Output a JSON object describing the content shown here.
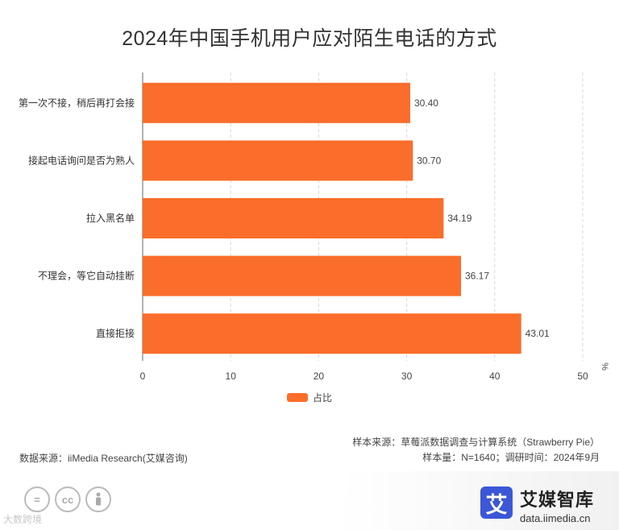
{
  "chart_data": {
    "type": "bar",
    "orientation": "horizontal",
    "title": "2024年中国手机用户应对陌生电话的方式",
    "categories": [
      "第一次不接，稍后再打会接",
      "接起电话询问是否为熟人",
      "拉入黑名单",
      "不理会，等它自动挂断",
      "直接拒接"
    ],
    "series": [
      {
        "name": "占比",
        "values": [
          30.4,
          30.7,
          34.19,
          36.17,
          43.01
        ],
        "labels": [
          "30.40",
          "30.70",
          "34.19",
          "36.17",
          "43.01"
        ]
      }
    ],
    "unit": "%",
    "xlim": [
      0,
      50
    ],
    "xticks": [
      0,
      10,
      20,
      30,
      40,
      50
    ],
    "grid": "vertical dashed",
    "legend": "bottom-center"
  },
  "colors": {
    "bar": "#fa6d2a",
    "brand": "#3b57d6"
  },
  "source": {
    "data_source": "数据来源：iiMedia Research(艾媒咨询)",
    "sample_source": "样本来源：草莓派数据调查与计算系统（Strawberry Pie）",
    "sample_info": "样本量：N=1640；调研时间：2024年9月"
  },
  "brand": {
    "icon_char": "艾",
    "name": "艾媒智库",
    "url": "data.iimedia.cn"
  },
  "license_icons": [
    "equals-icon",
    "cc-icon",
    "person-icon"
  ],
  "watermark": "大数跨境"
}
